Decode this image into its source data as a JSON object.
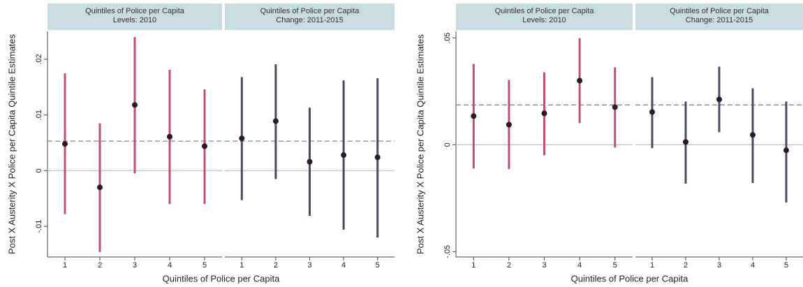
{
  "chart_data": [
    {
      "type": "errorbar",
      "ylabel": "Post X Austerity X Police per Capita Quintile Estimates",
      "xlabel": "Quintiles of Police per Capita",
      "ylim": [
        -0.0155,
        0.025
      ],
      "yticks": [
        {
          "value": -0.01,
          "label": "-.01"
        },
        0,
        {
          "value": 0.01,
          "label": ".01"
        },
        {
          "value": 0.02,
          "label": ".02"
        }
      ],
      "reference_line": 0.0053,
      "facets": [
        {
          "title": [
            "Quintiles of Police per Capita",
            "Levels: 2010"
          ],
          "color": "#c0506c",
          "categories": [
            "1",
            "2",
            "3",
            "4",
            "5"
          ],
          "values": [
            0.0048,
            -0.003,
            0.0118,
            0.0061,
            0.0044
          ],
          "lower": [
            -0.0078,
            -0.0146,
            -0.0005,
            -0.006,
            -0.006
          ],
          "upper": [
            0.0175,
            0.0085,
            0.024,
            0.0181,
            0.0146
          ]
        },
        {
          "title": [
            "Quintiles of Police per Capita",
            "Change: 2011-2015"
          ],
          "color": "#4c4a64",
          "categories": [
            "1",
            "2",
            "3",
            "4",
            "5"
          ],
          "values": [
            0.0058,
            0.0089,
            0.0016,
            0.0028,
            0.0024
          ],
          "lower": [
            -0.0053,
            -0.0015,
            -0.0081,
            -0.0106,
            -0.012
          ],
          "upper": [
            0.0168,
            0.0191,
            0.0113,
            0.0162,
            0.0166
          ]
        }
      ]
    },
    {
      "type": "errorbar",
      "ylabel": "Post X Austerity X Police per Capita Quintile Estimates",
      "xlabel": "Quintiles of Police per Capita",
      "ylim": [
        -0.0525,
        0.053
      ],
      "yticks": [
        {
          "value": -0.05,
          "label": "-.05"
        },
        0,
        {
          "value": 0.05,
          "label": ".05"
        }
      ],
      "reference_line": 0.0186,
      "facets": [
        {
          "title": [
            "Quintiles of Police per Capita",
            "Levels: 2010"
          ],
          "color": "#c0506c",
          "categories": [
            "1",
            "2",
            "3",
            "4",
            "5"
          ],
          "values": [
            0.0134,
            0.0094,
            0.0147,
            0.03,
            0.0176
          ],
          "lower": [
            -0.0111,
            -0.0114,
            -0.0049,
            0.0101,
            -0.0013
          ],
          "upper": [
            0.0378,
            0.0303,
            0.0339,
            0.0498,
            0.0362
          ]
        },
        {
          "title": [
            "Quintiles of Police per Capita",
            "Change: 2011-2015"
          ],
          "color": "#4c4a64",
          "categories": [
            "1",
            "2",
            "3",
            "4",
            "5"
          ],
          "values": [
            0.0153,
            0.0013,
            0.0212,
            0.0046,
            -0.0026
          ],
          "lower": [
            -0.0016,
            -0.0182,
            0.0059,
            -0.0179,
            -0.027
          ],
          "upper": [
            0.0316,
            0.0202,
            0.0365,
            0.0264,
            0.0202
          ]
        }
      ]
    }
  ]
}
